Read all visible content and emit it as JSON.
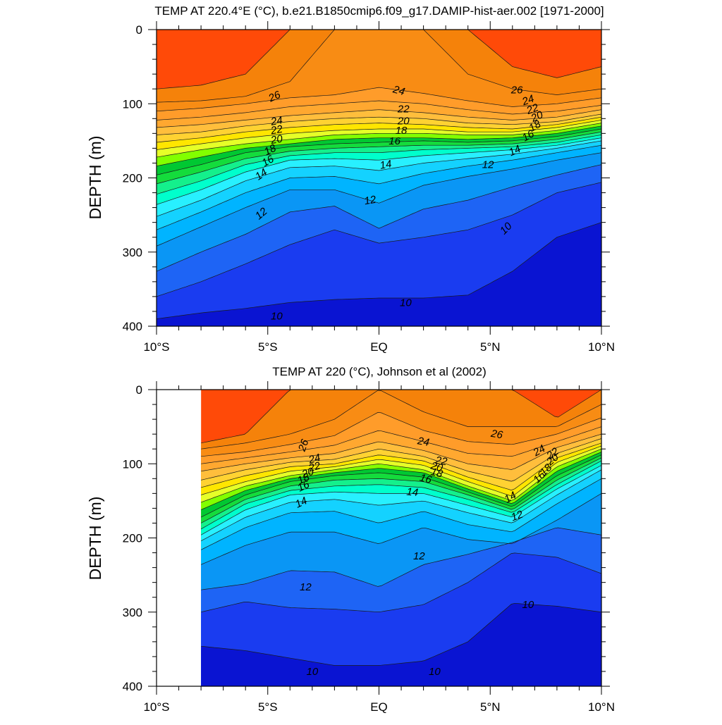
{
  "chart_data": [
    {
      "type": "contour",
      "title": "TEMP AT 220.4°E (°C), b.e21.B1850cmip6.f09_g17.DAMIP-hist-aer.002 [1971-2000]",
      "ylabel": "DEPTH (m)",
      "xlabel": "",
      "xlim": [
        -10,
        10
      ],
      "ylim": [
        0,
        400
      ],
      "y_inverted": true,
      "x_ticks": [
        {
          "value": -10,
          "label": "10°S"
        },
        {
          "value": -5,
          "label": "5°S"
        },
        {
          "value": 0,
          "label": "EQ"
        },
        {
          "value": 5,
          "label": "5°N"
        },
        {
          "value": 10,
          "label": "10°N"
        }
      ],
      "y_ticks": [
        {
          "value": 0,
          "label": "0"
        },
        {
          "value": 100,
          "label": "100"
        },
        {
          "value": 200,
          "label": "200"
        },
        {
          "value": 300,
          "label": "300"
        },
        {
          "value": 400,
          "label": "400"
        }
      ],
      "data_x_range": [
        -10,
        10
      ],
      "contour_interval_degC": 1,
      "isotherm_depths_m": {
        "lat": [
          -10,
          -8,
          -6,
          -4,
          -2,
          0,
          2,
          4,
          6,
          8,
          10
        ],
        "levels": [
          {
            "t": 28,
            "depth": [
              80,
              75,
              60,
              0,
              0,
              0,
              0,
              0,
              50,
              65,
              50
            ]
          },
          {
            "t": 27,
            "depth": [
              98,
              96,
              90,
              70,
              0,
              0,
              0,
              60,
              80,
              88,
              80
            ]
          },
          {
            "t": 26,
            "depth": [
              110,
              106,
              100,
              92,
              88,
              78,
              86,
              96,
              104,
              100,
              92
            ]
          },
          {
            "t": 25,
            "depth": [
              122,
              118,
              112,
              104,
              100,
              96,
              100,
              108,
              114,
              110,
              102
            ]
          },
          {
            "t": 24,
            "depth": [
              132,
              128,
              122,
              116,
              112,
              108,
              112,
              118,
              122,
              118,
              108
            ]
          },
          {
            "t": 23,
            "depth": [
              142,
              138,
              130,
              124,
              120,
              118,
              120,
              126,
              128,
              124,
              114
            ]
          },
          {
            "t": 22,
            "depth": [
              152,
              146,
              138,
              132,
              128,
              126,
              128,
              132,
              134,
              128,
              118
            ]
          },
          {
            "t": 21,
            "depth": [
              162,
              154,
              146,
              140,
              136,
              134,
              134,
              138,
              138,
              132,
              122
            ]
          },
          {
            "t": 20,
            "depth": [
              172,
              162,
              154,
              148,
              142,
              140,
              140,
              142,
              142,
              136,
              126
            ]
          },
          {
            "t": 19,
            "depth": [
              184,
              172,
              160,
              154,
              148,
              146,
              146,
              148,
              146,
              140,
              130
            ]
          },
          {
            "t": 18,
            "depth": [
              196,
              182,
              166,
              158,
              154,
              152,
              150,
              152,
              150,
              144,
              134
            ]
          },
          {
            "t": 17,
            "depth": [
              208,
              192,
              174,
              164,
              160,
              158,
              156,
              156,
              154,
              148,
              138
            ]
          },
          {
            "t": 16,
            "depth": [
              222,
              204,
              182,
              170,
              166,
              166,
              162,
              160,
              158,
              152,
              142
            ]
          },
          {
            "t": 15,
            "depth": [
              236,
              216,
              192,
              176,
              174,
              176,
              170,
              166,
              162,
              156,
              146
            ]
          },
          {
            "t": 14,
            "depth": [
              252,
              230,
              204,
              186,
              184,
              190,
              180,
              174,
              168,
              160,
              150
            ]
          },
          {
            "t": 13,
            "depth": [
              270,
              246,
              220,
              200,
              198,
              208,
              194,
              184,
              176,
              166,
              156
            ]
          },
          {
            "t": 12,
            "depth": [
              292,
              266,
              240,
              216,
              216,
              234,
              210,
              198,
              188,
              176,
              166
            ]
          },
          {
            "t": 11,
            "depth": [
              326,
              300,
              276,
              246,
              238,
              268,
              242,
              230,
              212,
              196,
              182
            ]
          },
          {
            "t": 10,
            "depth": [
              360,
              340,
              316,
              290,
              270,
              288,
              280,
              270,
              250,
              220,
              206
            ]
          },
          {
            "t": 9,
            "depth": [
              390,
              382,
              376,
              368,
              364,
              362,
              362,
              358,
              326,
              280,
              260
            ]
          }
        ]
      },
      "contour_labels": [
        {
          "text": "26",
          "lat": -4.7,
          "depth": 90,
          "angle": -25
        },
        {
          "text": "24",
          "lat": -4.6,
          "depth": 123,
          "angle": -10
        },
        {
          "text": "22",
          "lat": -4.6,
          "depth": 135,
          "angle": -10
        },
        {
          "text": "20",
          "lat": -4.6,
          "depth": 148,
          "angle": -10
        },
        {
          "text": "18",
          "lat": -4.9,
          "depth": 162,
          "angle": -25
        },
        {
          "text": "16",
          "lat": -5.0,
          "depth": 177,
          "angle": -30
        },
        {
          "text": "14",
          "lat": -5.3,
          "depth": 195,
          "angle": -35
        },
        {
          "text": "12",
          "lat": -5.3,
          "depth": 248,
          "angle": -40
        },
        {
          "text": "24",
          "lat": 0.9,
          "depth": 82,
          "angle": 15
        },
        {
          "text": "22",
          "lat": 1.1,
          "depth": 107,
          "angle": 0
        },
        {
          "text": "20",
          "lat": 1.1,
          "depth": 123,
          "angle": 0
        },
        {
          "text": "18",
          "lat": 1.0,
          "depth": 136,
          "angle": 0
        },
        {
          "text": "16",
          "lat": 0.7,
          "depth": 150,
          "angle": 0
        },
        {
          "text": "14",
          "lat": 0.3,
          "depth": 182,
          "angle": -10
        },
        {
          "text": "12",
          "lat": -0.4,
          "depth": 230,
          "angle": -10
        },
        {
          "text": "26",
          "lat": 6.2,
          "depth": 81,
          "angle": 0
        },
        {
          "text": "24",
          "lat": 6.7,
          "depth": 95,
          "angle": -20
        },
        {
          "text": "22",
          "lat": 6.9,
          "depth": 107,
          "angle": -20
        },
        {
          "text": "20",
          "lat": 7.1,
          "depth": 117,
          "angle": -25
        },
        {
          "text": "18",
          "lat": 7.0,
          "depth": 130,
          "angle": -30
        },
        {
          "text": "16",
          "lat": 6.7,
          "depth": 143,
          "angle": -30
        },
        {
          "text": "14",
          "lat": 6.1,
          "depth": 163,
          "angle": -25
        },
        {
          "text": "12",
          "lat": 4.9,
          "depth": 182,
          "angle": 0
        },
        {
          "text": "10",
          "lat": 5.7,
          "depth": 268,
          "angle": -45
        },
        {
          "text": "10",
          "lat": -4.6,
          "depth": 386,
          "angle": 0
        },
        {
          "text": "10",
          "lat": 1.2,
          "depth": 368,
          "angle": 0
        }
      ]
    },
    {
      "type": "contour",
      "title": "TEMP AT 220 (°C), Johnson et al (2002)",
      "ylabel": "DEPTH (m)",
      "xlabel": "",
      "xlim": [
        -10,
        10
      ],
      "ylim": [
        0,
        400
      ],
      "y_inverted": true,
      "x_ticks": [
        {
          "value": -10,
          "label": "10°S"
        },
        {
          "value": -5,
          "label": "5°S"
        },
        {
          "value": 0,
          "label": "EQ"
        },
        {
          "value": 5,
          "label": "5°N"
        },
        {
          "value": 10,
          "label": "10°N"
        }
      ],
      "y_ticks": [
        {
          "value": 0,
          "label": "0"
        },
        {
          "value": 100,
          "label": "100"
        },
        {
          "value": 200,
          "label": "200"
        },
        {
          "value": 300,
          "label": "300"
        },
        {
          "value": 400,
          "label": "400"
        }
      ],
      "data_x_range": [
        -8,
        10
      ],
      "contour_interval_degC": 1,
      "isotherm_depths_m": {
        "lat": [
          -8,
          -6,
          -4,
          -2,
          0,
          2,
          4,
          6,
          8,
          10
        ],
        "levels": [
          {
            "t": 28,
            "depth": [
              72,
              60,
              0,
              0,
              0,
              0,
              0,
              0,
              38,
              0
            ]
          },
          {
            "t": 27,
            "depth": [
              80,
              72,
              60,
              40,
              0,
              30,
              50,
              50,
              50,
              20
            ]
          },
          {
            "t": 26,
            "depth": [
              90,
              84,
              74,
              62,
              30,
              55,
              70,
              74,
              60,
              38
            ]
          },
          {
            "t": 25,
            "depth": [
              100,
              92,
              84,
              75,
              55,
              70,
              86,
              90,
              70,
              50
            ]
          },
          {
            "t": 24,
            "depth": [
              110,
              100,
              92,
              86,
              70,
              82,
              100,
              108,
              78,
              60
            ]
          },
          {
            "t": 23,
            "depth": [
              122,
              108,
              98,
              94,
              80,
              90,
              110,
              124,
              86,
              66
            ]
          },
          {
            "t": 22,
            "depth": [
              132,
              116,
              104,
              100,
              88,
              96,
              118,
              136,
              92,
              72
            ]
          },
          {
            "t": 21,
            "depth": [
              142,
              124,
              110,
              104,
              94,
              102,
              124,
              144,
              98,
              76
            ]
          },
          {
            "t": 20,
            "depth": [
              152,
              130,
              116,
              108,
              100,
              108,
              130,
              150,
              104,
              80
            ]
          },
          {
            "t": 19,
            "depth": [
              162,
              136,
              120,
              112,
              106,
              112,
              134,
              154,
              110,
              84
            ]
          },
          {
            "t": 18,
            "depth": [
              172,
              142,
              124,
              116,
              112,
              118,
              138,
              158,
              116,
              88
            ]
          },
          {
            "t": 17,
            "depth": [
              180,
              148,
              130,
              122,
              120,
              124,
              142,
              162,
              122,
              92
            ]
          },
          {
            "t": 16,
            "depth": [
              188,
              154,
              136,
              130,
              128,
              132,
              148,
              166,
              128,
              96
            ]
          },
          {
            "t": 15,
            "depth": [
              196,
              162,
              142,
              138,
              140,
              140,
              156,
              172,
              134,
              102
            ]
          },
          {
            "t": 14,
            "depth": [
              204,
              172,
              152,
              148,
              156,
              150,
              166,
              180,
              142,
              108
            ]
          },
          {
            "t": 13,
            "depth": [
              216,
              186,
              166,
              164,
              180,
              164,
              182,
              192,
              154,
              120
            ]
          },
          {
            "t": 12,
            "depth": [
              236,
              210,
              192,
              192,
              208,
              186,
              202,
              208,
              176,
              140
            ]
          },
          {
            "t": 11,
            "depth": [
              270,
              262,
              244,
              246,
              266,
              236,
              222,
              206,
              186,
              196
            ]
          },
          {
            "t": 10,
            "depth": [
              300,
              286,
              294,
              296,
              300,
              290,
              260,
              220,
              226,
              248
            ]
          },
          {
            "t": 9,
            "depth": [
              346,
              352,
              362,
              372,
              372,
              366,
              340,
              288,
              292,
              300
            ]
          }
        ]
      },
      "contour_labels": [
        {
          "text": "26",
          "lat": -3.4,
          "depth": 75,
          "angle": -70
        },
        {
          "text": "24",
          "lat": -2.9,
          "depth": 93,
          "angle": -15
        },
        {
          "text": "22",
          "lat": -2.9,
          "depth": 104,
          "angle": -15
        },
        {
          "text": "20",
          "lat": -3.2,
          "depth": 112,
          "angle": -20
        },
        {
          "text": "18",
          "lat": -3.4,
          "depth": 120,
          "angle": -25
        },
        {
          "text": "16",
          "lat": -3.4,
          "depth": 130,
          "angle": -25
        },
        {
          "text": "14",
          "lat": -3.5,
          "depth": 152,
          "angle": -25
        },
        {
          "text": "24",
          "lat": 2.0,
          "depth": 70,
          "angle": 10
        },
        {
          "text": "22",
          "lat": 2.8,
          "depth": 96,
          "angle": 10
        },
        {
          "text": "20",
          "lat": 2.6,
          "depth": 104,
          "angle": 15
        },
        {
          "text": "18",
          "lat": 2.6,
          "depth": 112,
          "angle": 15
        },
        {
          "text": "16",
          "lat": 2.1,
          "depth": 120,
          "angle": 15
        },
        {
          "text": "14",
          "lat": 1.5,
          "depth": 138,
          "angle": 5
        },
        {
          "text": "12",
          "lat": 1.8,
          "depth": 224,
          "angle": 0
        },
        {
          "text": "12",
          "lat": -3.3,
          "depth": 266,
          "angle": 0
        },
        {
          "text": "26",
          "lat": 5.3,
          "depth": 60,
          "angle": 10
        },
        {
          "text": "24",
          "lat": 7.2,
          "depth": 82,
          "angle": -30
        },
        {
          "text": "22",
          "lat": 7.8,
          "depth": 86,
          "angle": -35
        },
        {
          "text": "20",
          "lat": 7.8,
          "depth": 94,
          "angle": -40
        },
        {
          "text": "18",
          "lat": 7.5,
          "depth": 108,
          "angle": -45
        },
        {
          "text": "16",
          "lat": 7.2,
          "depth": 118,
          "angle": -45
        },
        {
          "text": "14",
          "lat": 5.9,
          "depth": 145,
          "angle": -30
        },
        {
          "text": "12",
          "lat": 6.2,
          "depth": 170,
          "angle": -20
        },
        {
          "text": "10",
          "lat": 6.7,
          "depth": 290,
          "angle": 0
        },
        {
          "text": "10",
          "lat": -3.0,
          "depth": 380,
          "angle": 0
        },
        {
          "text": "10",
          "lat": 2.5,
          "depth": 380,
          "angle": 0
        }
      ]
    }
  ]
}
